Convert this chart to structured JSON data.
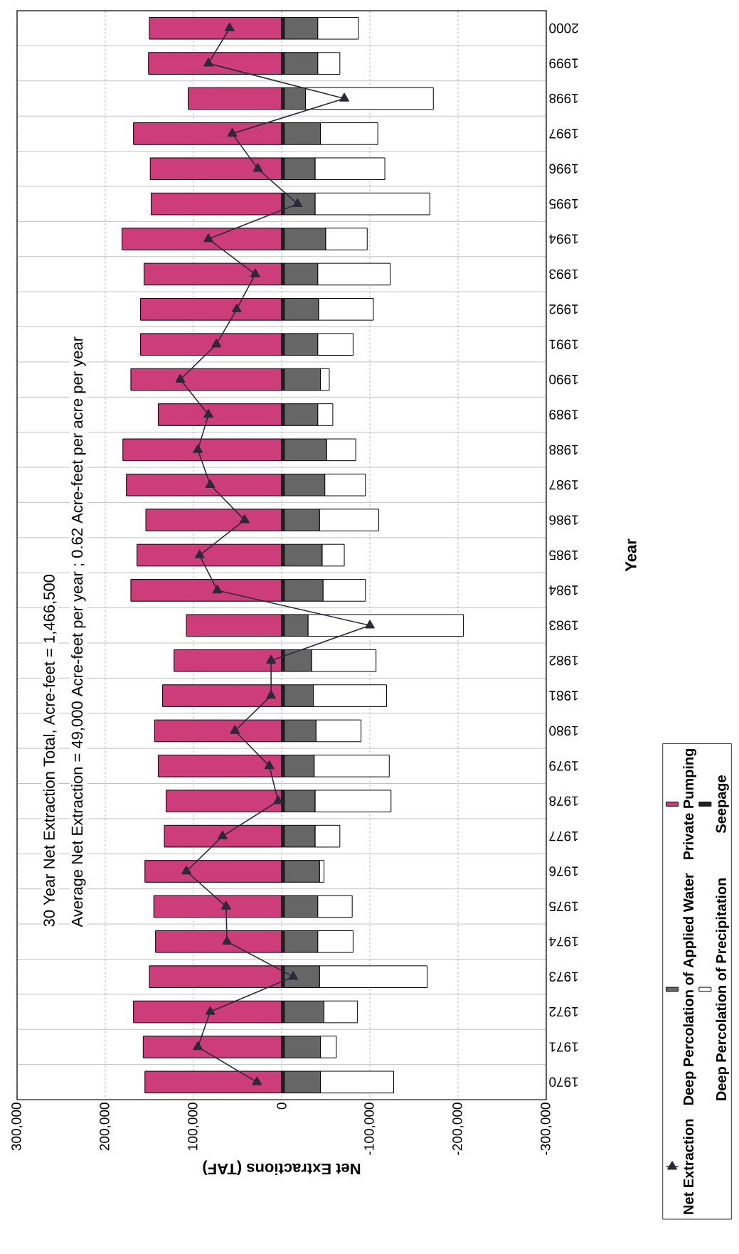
{
  "chart_data": {
    "type": "bar",
    "stacked": true,
    "orientation": "horizontal",
    "xlabel": "Net Extractions (TAF)",
    "ylabel": "Year",
    "annotations": [
      "30 Year Net Extraction Total, Acre-feet = 1,466,500",
      "Average Net Extraction =  49,000 Acre-feet per year ;  0.62 Acre-feet per acre per year"
    ],
    "categories": [
      "2000",
      "1999",
      "1998",
      "1997",
      "1996",
      "1995",
      "1994",
      "1993",
      "1992",
      "1991",
      "1990",
      "1989",
      "1988",
      "1987",
      "1986",
      "1985",
      "1984",
      "1983",
      "1982",
      "1981",
      "1980",
      "1979",
      "1978",
      "1977",
      "1976",
      "1975",
      "1974",
      "1973",
      "1972",
      "1971",
      "1970"
    ],
    "series": [
      {
        "name": "Private Pumping",
        "color": "#cc3d7a",
        "values": [
          150000,
          151000,
          106000,
          168000,
          149000,
          148000,
          181000,
          156000,
          160000,
          160000,
          171000,
          140000,
          180000,
          176000,
          154000,
          164000,
          171000,
          108000,
          122000,
          135000,
          144000,
          140000,
          131000,
          133000,
          155000,
          145000,
          143000,
          150000,
          168000,
          157000,
          155000
        ]
      },
      {
        "name": "Seepage",
        "color": "#222222",
        "values": [
          -3000,
          -3000,
          -3000,
          -3000,
          -3000,
          -3000,
          -3000,
          -3000,
          -3000,
          -3000,
          -3000,
          -3000,
          -3000,
          -3000,
          -3000,
          -3000,
          -3000,
          -3000,
          -3000,
          -3000,
          -3000,
          -3000,
          -3000,
          -3000,
          -3000,
          -3000,
          -3000,
          -3000,
          -3000,
          -3000,
          -3000
        ]
      },
      {
        "name": "Deep Percolation of Applied Water",
        "color": "#666666",
        "values": [
          -38000,
          -38000,
          -24000,
          -41000,
          -35000,
          -35000,
          -47000,
          -38000,
          -39000,
          -38000,
          -41000,
          -38000,
          -48000,
          -46000,
          -40000,
          -43000,
          -44000,
          -27000,
          -31000,
          -33000,
          -36000,
          -34000,
          -35000,
          -35000,
          -40000,
          -38000,
          -38000,
          -40000,
          -45000,
          -41000,
          -41000
        ]
      },
      {
        "name": "Deep Percolation of Precipitation",
        "color": "#ffffff",
        "values": [
          -46000,
          -25000,
          -145000,
          -65000,
          -79000,
          -130000,
          -47000,
          -82000,
          -62000,
          -40000,
          -10000,
          -17000,
          -33000,
          -46000,
          -67000,
          -25000,
          -48000,
          -176000,
          -73000,
          -83000,
          -51000,
          -85000,
          -86000,
          -28000,
          -5000,
          -39000,
          -40000,
          -122000,
          -38000,
          -18000,
          -83000
        ]
      },
      {
        "name": "Net Extraction",
        "type": "line",
        "color": "#2a2a3a",
        "values": [
          59000,
          83000,
          -71000,
          56000,
          27000,
          -18000,
          83000,
          30000,
          51000,
          74000,
          115000,
          83000,
          95000,
          81000,
          42000,
          93000,
          73000,
          -100000,
          12000,
          12000,
          53000,
          14000,
          4000,
          67000,
          108000,
          63000,
          62000,
          -13000,
          81000,
          95000,
          28000
        ]
      }
    ],
    "marker": "triangle",
    "xlim": [
      300000,
      -300000
    ],
    "xticks": [
      {
        "value": 300000,
        "label": "300,000"
      },
      {
        "value": 200000,
        "label": "200,000"
      },
      {
        "value": 100000,
        "label": "100,000"
      },
      {
        "value": 0,
        "label": "0"
      },
      {
        "value": -100000,
        "label": "-100,000"
      },
      {
        "value": -200000,
        "label": "-200,000"
      },
      {
        "value": -300000,
        "label": "-300,000"
      }
    ],
    "grid": true,
    "legend": "right"
  }
}
